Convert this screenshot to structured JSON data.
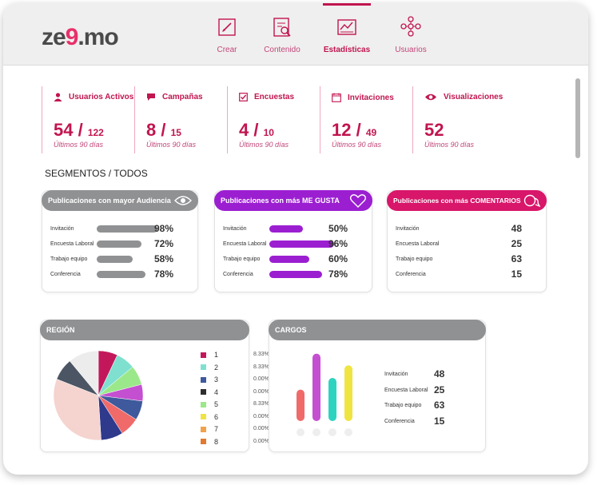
{
  "app": {
    "logo_main": "ze",
    "logo_accent": "9",
    "logo_end": ".mo"
  },
  "nav": [
    {
      "label": "Crear",
      "icon": "edit-icon"
    },
    {
      "label": "Contenido",
      "icon": "content-search-icon"
    },
    {
      "label": "Estadísticas",
      "icon": "stats-chart-icon",
      "active": true
    },
    {
      "label": "Usuarios",
      "icon": "users-network-icon"
    }
  ],
  "stats": [
    {
      "title": "Usuarios Activos",
      "value": "54",
      "total": "122",
      "period": "Últimos 90 días",
      "icon": "user-icon"
    },
    {
      "title": "Campañas",
      "value": "8",
      "total": "15",
      "period": "Últimos 90 días",
      "icon": "chat-icon"
    },
    {
      "title": "Encuestas",
      "value": "4",
      "total": "10",
      "period": "Últimos 90 días",
      "icon": "checkbox-icon"
    },
    {
      "title": "Invitaciones",
      "value": "12",
      "total": "49",
      "period": "Últimos 90 días",
      "icon": "calendar-icon"
    },
    {
      "title": "Visualizaciones",
      "value": "52",
      "total": "",
      "period": "Últimos 90 días",
      "icon": "eye-icon"
    }
  ],
  "segments_title": "SEGMENTOS / TODOS",
  "audience": {
    "title": "Publicaciones con mayor Audiencia",
    "color": "#8f9193",
    "rows": [
      {
        "label": "Invitación",
        "value": "98%",
        "fraction": 0.98
      },
      {
        "label": "Encuesta Laboral",
        "value": "72%",
        "fraction": 0.72
      },
      {
        "label": "Trabajo equipo",
        "value": "58%",
        "fraction": 0.58
      },
      {
        "label": "Conferencia",
        "value": "78%",
        "fraction": 0.78
      }
    ]
  },
  "likes": {
    "title": "Publicaciones con más ME GUSTA",
    "color": "#9b1fd1",
    "rows": [
      {
        "label": "Invitación",
        "value": "50%",
        "fraction": 0.5
      },
      {
        "label": "Encuesta Laboral",
        "value": "96%",
        "fraction": 0.96
      },
      {
        "label": "Trabajo equipo",
        "value": "60%",
        "fraction": 0.6
      },
      {
        "label": "Conferencia",
        "value": "78%",
        "fraction": 0.78
      }
    ]
  },
  "comments": {
    "title": "Publicaciones con más COMENTARIOS",
    "color": "#d8166a",
    "rows": [
      {
        "label": "Invitación",
        "value": "48"
      },
      {
        "label": "Encuesta Laboral",
        "value": "25"
      },
      {
        "label": "Trabajo equipo",
        "value": "63"
      },
      {
        "label": "Conferencia",
        "value": "15"
      }
    ]
  },
  "region": {
    "title": "REGIÓN",
    "legend": [
      {
        "label": "1",
        "pct": "8.33%",
        "color": "#c2185b"
      },
      {
        "label": "2",
        "pct": "8.33%",
        "color": "#7fe0d0"
      },
      {
        "label": "3",
        "pct": "0.00%",
        "color": "#3e5a9c"
      },
      {
        "label": "4",
        "pct": "0.00%",
        "color": "#2e2e2e"
      },
      {
        "label": "5",
        "pct": "8.33%",
        "color": "#9be88a"
      },
      {
        "label": "6",
        "pct": "0.00%",
        "color": "#f0e442"
      },
      {
        "label": "7",
        "pct": "0.00%",
        "color": "#f2a24b"
      },
      {
        "label": "8",
        "pct": "0.00%",
        "color": "#e07a30"
      }
    ]
  },
  "cargos": {
    "title": "CARGOS",
    "rows": [
      {
        "label": "Invitación",
        "value": "48"
      },
      {
        "label": "Encuesta Laboral",
        "value": "25"
      },
      {
        "label": "Trabajo equipo",
        "value": "63"
      },
      {
        "label": "Conferencia",
        "value": "15"
      }
    ]
  },
  "chart_data": [
    {
      "type": "pie",
      "title": "REGIÓN",
      "slices": [
        {
          "color": "#c2185b",
          "value": 7
        },
        {
          "color": "#7fe0d0",
          "value": 7
        },
        {
          "color": "#9be88a",
          "value": 7
        },
        {
          "color": "#c44fd0",
          "value": 6
        },
        {
          "color": "#3e5a9c",
          "value": 7
        },
        {
          "color": "#f06a6a",
          "value": 7
        },
        {
          "color": "#2f3a8c",
          "value": 8
        },
        {
          "color": "#f5d3cf",
          "value": 32
        },
        {
          "color": "#4b5563",
          "value": 8
        },
        {
          "color": "#ececec",
          "value": 11
        }
      ]
    },
    {
      "type": "bar",
      "title": "CARGOS",
      "values": [
        35,
        75,
        48,
        62
      ],
      "colors": [
        "#f06a6a",
        "#c44fd0",
        "#2ed3c0",
        "#f0e442"
      ],
      "ylim": [
        0,
        80
      ]
    }
  ],
  "colors": {
    "accent": "#c1154e",
    "brand_grey": "#4a4a4a"
  }
}
